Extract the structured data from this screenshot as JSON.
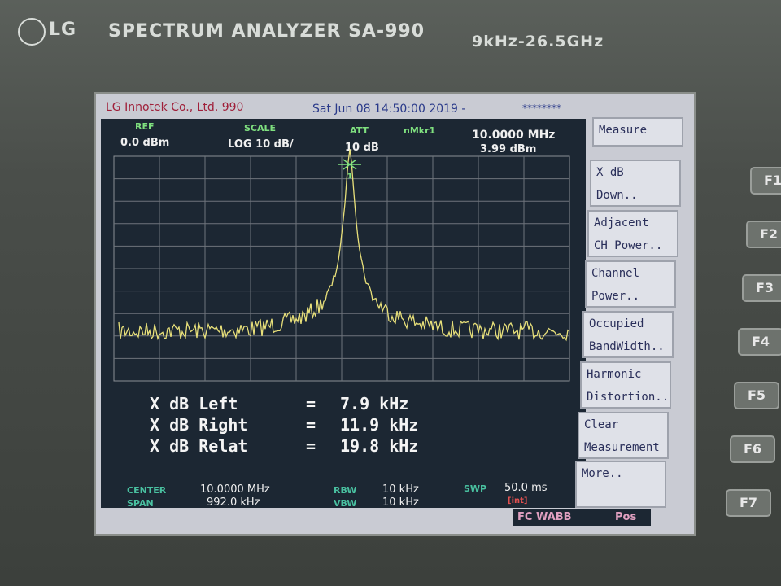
{
  "bezel": {
    "logo": "LG",
    "model": "SPECTRUM ANALYZER SA-990",
    "range": "9kHz-26.5GHz"
  },
  "header": {
    "company": "LG Innotek Co., Ltd. 990",
    "datetime": "Sat Jun 08 14:50:00 2019 -",
    "stars": "********"
  },
  "settings": {
    "ref_label": "REF",
    "ref_value": "0.0 dBm",
    "scale_label": "SCALE",
    "scale_value": "LOG 10 dB/",
    "att_label": "ATT",
    "att_value": "10 dB",
    "marker_label": "nMkr1",
    "marker_freq": "10.0000 MHz",
    "marker_level": "3.99 dBm"
  },
  "marker_number": "1",
  "results": [
    {
      "label": "X dB Left",
      "eq": "=",
      "value": "7.9 kHz"
    },
    {
      "label": "X dB Right",
      "eq": "=",
      "value": "11.9 kHz"
    },
    {
      "label": "X dB Relat",
      "eq": "=",
      "value": "19.8 kHz"
    }
  ],
  "footer": {
    "center_label": "CENTER",
    "center_value": "10.0000 MHz",
    "span_label": "SPAN",
    "span_value": "992.0 kHz",
    "rbw_label": "RBW",
    "rbw_value": "10 kHz",
    "vbw_label": "VBW",
    "vbw_value": "10 kHz",
    "swp_label": "SWP",
    "swp_value": "50.0 ms",
    "swp_mode": "[int]"
  },
  "status": {
    "mode": "FC WABB",
    "pos": "Pos"
  },
  "softkeys": [
    [
      "Measure"
    ],
    [
      "X dB",
      "Down.."
    ],
    [
      "Adjacent",
      "CH Power.."
    ],
    [
      "Channel",
      "Power.."
    ],
    [
      "Occupied",
      "BandWidth.."
    ],
    [
      "Harmonic",
      "Distortion.."
    ],
    [
      "Clear",
      "Measurement"
    ],
    [
      "More.."
    ]
  ],
  "fkeys": [
    "F1",
    "F2",
    "F3",
    "F4",
    "F5",
    "F6",
    "F7"
  ]
}
